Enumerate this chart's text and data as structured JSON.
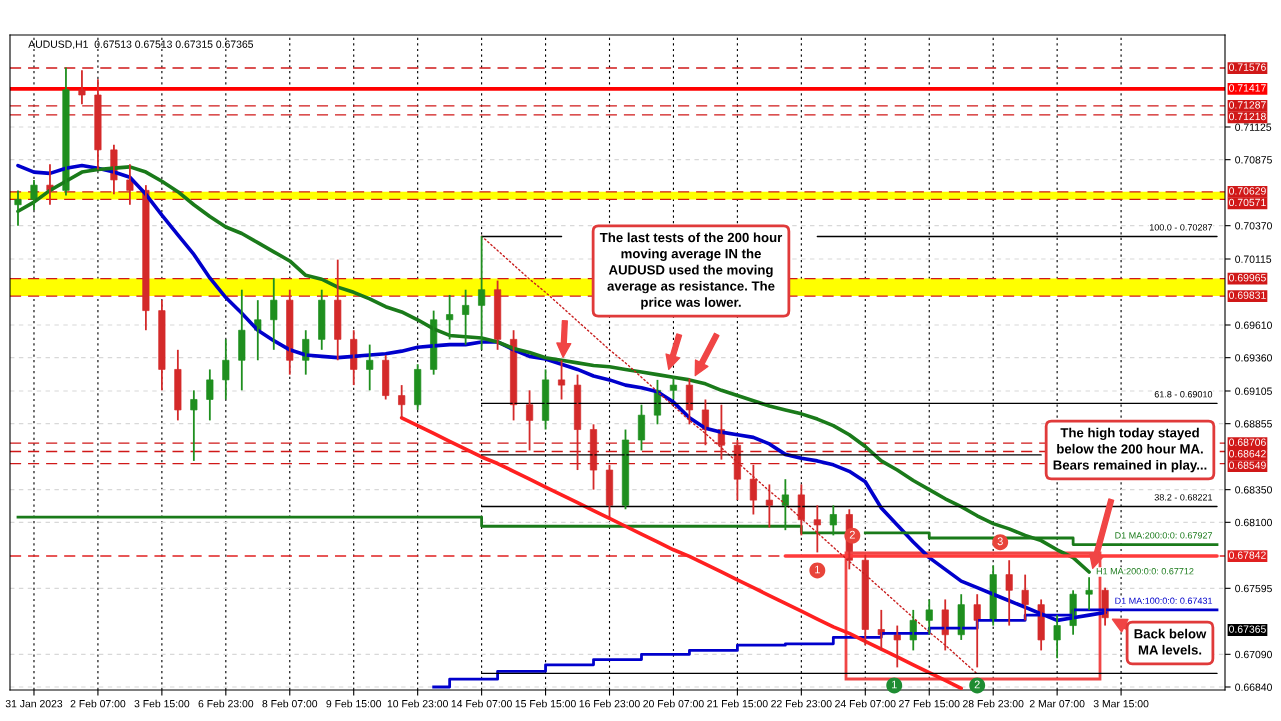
{
  "chart_data": {
    "type": "candlestick",
    "title": "AUDUSD,H1  0.67513 0.67513 0.67315 0.67365",
    "categories": [
      null,
      "31 Jan 2023",
      null,
      null,
      null,
      "2 Feb 07:00",
      null,
      null,
      null,
      "3 Feb 15:00",
      null,
      null,
      null,
      "6 Feb 23:00",
      null,
      null,
      null,
      "8 Feb 07:00",
      null,
      null,
      null,
      "9 Feb 15:00",
      null,
      null,
      null,
      "10 Feb 23:00",
      null,
      null,
      null,
      "14 Feb 07:00",
      null,
      null,
      null,
      "15 Feb 15:00",
      null,
      null,
      null,
      "16 Feb 23:00",
      null,
      null,
      null,
      "20 Feb 07:00",
      null,
      null,
      null,
      "21 Feb 15:00",
      null,
      null,
      null,
      "22 Feb 23:00",
      null,
      null,
      null,
      "24 Feb 07:00",
      null,
      null,
      null,
      "27 Feb 15:00",
      null,
      null,
      null,
      "28 Feb 23:00",
      null,
      null,
      null,
      "2 Mar 07:00",
      null,
      null,
      null,
      "3 Mar 15:00",
      null,
      null,
      null,
      null,
      null,
      null
    ],
    "ohlc": [
      [
        0.7053,
        0.7064,
        0.7037,
        0.7057
      ],
      [
        0.7057,
        0.7072,
        0.7049,
        0.7068
      ],
      [
        0.7068,
        0.7084,
        0.7053,
        0.7064
      ],
      [
        0.7064,
        0.7158,
        0.706,
        0.7141
      ],
      [
        0.7141,
        0.7156,
        0.713,
        0.7137
      ],
      [
        0.7137,
        0.7149,
        0.708,
        0.7095
      ],
      [
        0.7095,
        0.7099,
        0.7061,
        0.7072
      ],
      [
        0.7072,
        0.7084,
        0.7053,
        0.7064
      ],
      [
        0.7064,
        0.7068,
        0.6957,
        0.6972
      ],
      [
        0.6972,
        0.698,
        0.6911,
        0.6927
      ],
      [
        0.6927,
        0.6942,
        0.6888,
        0.6896
      ],
      [
        0.6896,
        0.6911,
        0.6857,
        0.6904
      ],
      [
        0.6904,
        0.6927,
        0.6888,
        0.6919
      ],
      [
        0.6919,
        0.695,
        0.6904,
        0.6934
      ],
      [
        0.6934,
        0.6988,
        0.6911,
        0.6957
      ],
      [
        0.6957,
        0.698,
        0.6934,
        0.6965
      ],
      [
        0.6965,
        0.6997,
        0.6942,
        0.698
      ],
      [
        0.698,
        0.6988,
        0.6923,
        0.6934
      ],
      [
        0.6934,
        0.6957,
        0.6923,
        0.695
      ],
      [
        0.695,
        0.6988,
        0.6942,
        0.698
      ],
      [
        0.698,
        0.7011,
        0.6934,
        0.695
      ],
      [
        0.695,
        0.6957,
        0.6915,
        0.6927
      ],
      [
        0.6927,
        0.6946,
        0.6911,
        0.6934
      ],
      [
        0.6934,
        0.6938,
        0.6904,
        0.6907
      ],
      [
        0.6907,
        0.6915,
        0.689,
        0.69
      ],
      [
        0.69,
        0.6931,
        0.6896,
        0.6927
      ],
      [
        0.6927,
        0.6972,
        0.6923,
        0.6965
      ],
      [
        0.6965,
        0.6984,
        0.695,
        0.6969
      ],
      [
        0.6969,
        0.6988,
        0.6946,
        0.6976
      ],
      [
        0.6976,
        0.7029,
        0.6942,
        0.6988
      ],
      [
        0.6988,
        0.6995,
        0.6942,
        0.695
      ],
      [
        0.695,
        0.6957,
        0.6888,
        0.69
      ],
      [
        0.69,
        0.6911,
        0.6865,
        0.6888
      ],
      [
        0.6888,
        0.6927,
        0.6881,
        0.6919
      ],
      [
        0.6919,
        0.6934,
        0.6904,
        0.6915
      ],
      [
        0.6915,
        0.6923,
        0.685,
        0.6881
      ],
      [
        0.6881,
        0.6885,
        0.6835,
        0.685
      ],
      [
        0.685,
        0.6854,
        0.6814,
        0.6823
      ],
      [
        0.6823,
        0.6881,
        0.682,
        0.6873
      ],
      [
        0.6873,
        0.69,
        0.6865,
        0.6892
      ],
      [
        0.6892,
        0.6919,
        0.6885,
        0.6911
      ],
      [
        0.6911,
        0.6921,
        0.6904,
        0.6915
      ],
      [
        0.6915,
        0.692,
        0.6885,
        0.6896
      ],
      [
        0.6896,
        0.6904,
        0.6869,
        0.6881
      ],
      [
        0.6881,
        0.69,
        0.6858,
        0.6869
      ],
      [
        0.6869,
        0.6873,
        0.6827,
        0.6843
      ],
      [
        0.6843,
        0.6854,
        0.6816,
        0.6827
      ],
      [
        0.6827,
        0.6839,
        0.6806,
        0.6823
      ],
      [
        0.6823,
        0.6843,
        0.6804,
        0.6831
      ],
      [
        0.6831,
        0.6839,
        0.68,
        0.6812
      ],
      [
        0.6812,
        0.6823,
        0.6787,
        0.6808
      ],
      [
        0.6808,
        0.6823,
        0.68,
        0.6816
      ],
      [
        0.6816,
        0.682,
        0.6774,
        0.6781
      ],
      [
        0.6781,
        0.6785,
        0.6716,
        0.6728
      ],
      [
        0.6728,
        0.6743,
        0.6712,
        0.6724
      ],
      [
        0.6724,
        0.6731,
        0.6699,
        0.672
      ],
      [
        0.672,
        0.6743,
        0.6712,
        0.6735
      ],
      [
        0.6735,
        0.6751,
        0.6724,
        0.6743
      ],
      [
        0.6743,
        0.6751,
        0.6712,
        0.6724
      ],
      [
        0.6724,
        0.6755,
        0.672,
        0.6747
      ],
      [
        0.6747,
        0.6755,
        0.6699,
        0.6735
      ],
      [
        0.6735,
        0.6777,
        0.6731,
        0.677
      ],
      [
        0.677,
        0.6781,
        0.6731,
        0.6758
      ],
      [
        0.6758,
        0.677,
        0.6735,
        0.6747
      ],
      [
        0.6747,
        0.6751,
        0.6712,
        0.672
      ],
      [
        0.672,
        0.6739,
        0.6706,
        0.6731
      ],
      [
        0.6731,
        0.6758,
        0.6724,
        0.6755
      ],
      [
        0.6755,
        0.6768,
        0.6743,
        0.6758
      ],
      [
        0.6758,
        0.676,
        0.6731,
        0.6737
      ],
      null,
      null,
      null,
      null,
      null,
      null,
      null
    ],
    "series": [
      {
        "type": "line",
        "color": "#0000cc",
        "values": [
          0.7083,
          0.7078,
          0.7077,
          0.7081,
          0.7083,
          0.7081,
          0.7078,
          0.7074,
          0.7061,
          0.7045,
          0.703,
          0.7015,
          0.6997,
          0.6982,
          0.697,
          0.6957,
          0.6949,
          0.6942,
          0.6938,
          0.6937,
          0.6936,
          0.6937,
          0.6938,
          0.6939,
          0.6941,
          0.6944,
          0.6945,
          0.6946,
          0.6946,
          0.6948,
          0.6948,
          0.6942,
          0.6937,
          0.6935,
          0.6931,
          0.6927,
          0.6922,
          0.6919,
          0.6915,
          0.6913,
          0.691,
          0.6902,
          0.689,
          0.6882,
          0.6879,
          0.6877,
          0.6875,
          0.687,
          0.6862,
          0.6859,
          0.6857,
          0.6854,
          0.6849,
          0.6841,
          0.6821,
          0.6808,
          0.6795,
          0.6783,
          0.6774,
          0.6765,
          0.676,
          0.6755,
          0.675,
          0.6745,
          0.674,
          0.6735,
          0.6737,
          0.6739,
          0.6741,
          null,
          null,
          null,
          null,
          null,
          null,
          null
        ]
      },
      {
        "type": "line",
        "name": "H1 MA:200:0:0: 0.67712",
        "color": "#1a7a1a",
        "values": [
          0.7048,
          0.7055,
          0.7064,
          0.7071,
          0.7078,
          0.708,
          0.7081,
          0.7082,
          0.7078,
          0.7071,
          0.7063,
          0.7053,
          0.7044,
          0.7036,
          0.7031,
          0.7024,
          0.7017,
          0.701,
          0.6999,
          0.6996,
          0.699,
          0.6986,
          0.6981,
          0.6975,
          0.6971,
          0.6965,
          0.6958,
          0.6953,
          0.6952,
          0.6951,
          0.6948,
          0.6943,
          0.694,
          0.6936,
          0.6934,
          0.6932,
          0.693,
          0.6929,
          0.6927,
          0.6925,
          0.6923,
          0.6921,
          0.6919,
          0.6916,
          0.6911,
          0.6907,
          0.6903,
          0.6899,
          0.6896,
          0.6893,
          0.6889,
          0.6884,
          0.6877,
          0.6868,
          0.6857,
          0.685,
          0.6842,
          0.6835,
          0.6828,
          0.6822,
          0.6815,
          0.6809,
          0.6805,
          0.68,
          0.6796,
          0.6789,
          0.6783,
          0.6772,
          null,
          null,
          null,
          null,
          null,
          null,
          null,
          null
        ]
      },
      {
        "type": "step",
        "name": "D1 MA:200:0:0: 0.67927",
        "color": "#1a7a1a",
        "values": [
          0.6814,
          0.6814,
          0.6814,
          0.6814,
          0.6814,
          0.6814,
          0.6814,
          0.6814,
          0.6814,
          0.6814,
          0.6814,
          0.6814,
          0.6814,
          0.6814,
          0.6814,
          0.6814,
          0.6814,
          0.6814,
          0.6814,
          0.6814,
          0.6814,
          0.6814,
          0.6814,
          0.6814,
          0.6814,
          0.6814,
          0.6814,
          0.6814,
          0.6814,
          0.6807,
          0.6807,
          0.6807,
          0.6807,
          0.6807,
          0.6807,
          0.6807,
          0.6807,
          0.6807,
          0.6807,
          0.6807,
          0.6807,
          0.6807,
          0.6807,
          0.6807,
          0.6807,
          0.6807,
          0.6807,
          0.6807,
          0.6807,
          0.6802,
          0.6802,
          0.6802,
          null,
          0.6802,
          0.6802,
          0.6802,
          0.6802,
          0.6798,
          0.6798,
          0.6798,
          0.6798,
          0.6798,
          0.6798,
          0.6798,
          0.6798,
          0.6798,
          0.6793,
          0.6793,
          0.6793,
          0.6793,
          0.6793,
          0.6793,
          0.6793,
          0.6793,
          0.6793,
          0.6793
        ]
      },
      {
        "type": "step",
        "name": "D1 MA:100:0:0: 0.67431",
        "color": "#0000cc",
        "values": [
          null,
          null,
          null,
          null,
          null,
          null,
          null,
          null,
          null,
          null,
          null,
          null,
          null,
          null,
          null,
          null,
          null,
          null,
          null,
          null,
          null,
          null,
          null,
          null,
          null,
          null,
          0.6684,
          0.669,
          0.669,
          0.669,
          0.6696,
          0.6696,
          0.6696,
          0.6701,
          0.6701,
          0.6701,
          0.6705,
          0.6705,
          0.6705,
          0.6709,
          0.6709,
          0.6709,
          0.6712,
          0.6712,
          0.6712,
          0.6716,
          0.6716,
          0.6716,
          0.6717,
          0.6717,
          0.6717,
          0.6722,
          0.6722,
          0.6722,
          0.6725,
          0.6725,
          0.6725,
          0.6729,
          0.6729,
          0.6729,
          0.6735,
          0.6735,
          0.6735,
          0.6739,
          0.6739,
          0.6739,
          0.6743,
          0.6743,
          0.6743,
          0.6743,
          0.6743,
          0.6743,
          0.6743,
          0.6743,
          0.6743,
          0.6743
        ]
      },
      {
        "type": "line",
        "color": "#ff2020",
        "values": [
          null,
          null,
          null,
          null,
          null,
          null,
          null,
          null,
          null,
          null,
          null,
          null,
          null,
          null,
          null,
          null,
          null,
          null,
          null,
          null,
          null,
          null,
          null,
          null,
          0.689,
          0.6884,
          0.6878,
          0.6872,
          0.6866,
          0.686,
          0.6855,
          0.6849,
          0.6843,
          0.6837,
          0.6831,
          0.6825,
          0.6819,
          0.6813,
          0.6807,
          0.6801,
          0.6795,
          0.6789,
          0.6784,
          0.6778,
          0.6772,
          0.6766,
          0.676,
          0.6754,
          0.6748,
          0.6742,
          0.6736,
          0.673,
          0.6725,
          0.6719,
          0.6713,
          0.6707,
          0.6701,
          0.6695,
          0.6689,
          0.6683,
          null,
          null,
          null,
          null,
          null,
          null,
          null,
          null,
          null,
          null,
          null,
          null,
          null,
          null,
          null,
          null
        ]
      },
      {
        "type": "line",
        "color": "#ff3b3b",
        "values": [
          null,
          null,
          null,
          null,
          null,
          null,
          null,
          null,
          null,
          null,
          null,
          null,
          null,
          null,
          null,
          null,
          null,
          null,
          null,
          null,
          null,
          null,
          null,
          null,
          null,
          null,
          null,
          null,
          null,
          null,
          null,
          null,
          null,
          null,
          null,
          null,
          null,
          null,
          null,
          null,
          null,
          null,
          null,
          null,
          null,
          null,
          null,
          null,
          0.67842,
          0.67842,
          0.67842,
          0.67842,
          0.67842,
          0.67842,
          0.67842,
          0.67842,
          0.67842,
          0.67842,
          0.67842,
          0.67842,
          0.67842,
          0.67842,
          0.67842,
          0.67842,
          0.67842,
          0.67842,
          0.67842,
          0.67842,
          0.67842,
          0.67842,
          0.67842,
          0.67842,
          0.67842,
          0.67842,
          0.67842,
          0.67842
        ]
      },
      {
        "type": "line",
        "color": "#c81e1e",
        "line_style": "dotted",
        "values": [
          null,
          null,
          null,
          null,
          null,
          null,
          null,
          null,
          null,
          null,
          null,
          null,
          null,
          null,
          null,
          null,
          null,
          null,
          null,
          null,
          null,
          null,
          null,
          null,
          null,
          null,
          null,
          null,
          null,
          0.7029,
          0.7018,
          0.7007,
          0.6996,
          0.6986,
          0.6975,
          0.6964,
          0.6953,
          0.6942,
          0.6932,
          0.6921,
          0.691,
          0.6899,
          0.6888,
          0.6878,
          0.6867,
          0.6856,
          0.6845,
          0.6834,
          0.6824,
          0.6813,
          0.6802,
          0.6791,
          0.678,
          0.677,
          0.6759,
          0.6748,
          0.6737,
          0.6726,
          0.6716,
          0.6705,
          0.6694,
          null,
          null,
          null,
          null,
          null,
          null,
          null,
          null,
          null,
          null,
          null,
          null,
          null,
          null,
          null
        ]
      },
      {
        "type": "line",
        "name": "100.0 - 0.70287",
        "color": "#000000",
        "values": [
          null,
          null,
          null,
          null,
          null,
          null,
          null,
          null,
          null,
          null,
          null,
          null,
          null,
          null,
          null,
          null,
          null,
          null,
          null,
          null,
          null,
          null,
          null,
          null,
          null,
          null,
          null,
          null,
          null,
          0.70287,
          0.70287,
          0.70287,
          0.70287,
          0.70287,
          0.70287,
          null,
          null,
          null,
          null,
          null,
          null,
          null,
          null,
          null,
          null,
          null,
          null,
          null,
          null,
          null,
          0.70287,
          0.70287,
          0.70287,
          0.70287,
          0.70287,
          0.70287,
          0.70287,
          0.70287,
          0.70287,
          0.70287,
          0.70287,
          0.70287,
          0.70287,
          0.70287,
          0.70287,
          0.70287,
          0.70287,
          0.70287,
          0.70287,
          0.70287,
          0.70287,
          0.70287,
          0.70287,
          0.70287,
          0.70287,
          0.70287
        ]
      },
      {
        "type": "line",
        "name": "61.8 - 0.69010",
        "color": "#000000",
        "values": [
          null,
          null,
          null,
          null,
          null,
          null,
          null,
          null,
          null,
          null,
          null,
          null,
          null,
          null,
          null,
          null,
          null,
          null,
          null,
          null,
          null,
          null,
          null,
          null,
          null,
          null,
          null,
          null,
          null,
          0.6901,
          0.6901,
          0.6901,
          0.6901,
          0.6901,
          0.6901,
          0.6901,
          0.6901,
          0.6901,
          0.6901,
          0.6901,
          0.6901,
          0.6901,
          0.6901,
          0.6901,
          0.6901,
          0.6901,
          0.6901,
          0.6901,
          0.6901,
          0.6901,
          0.6901,
          0.6901,
          0.6901,
          0.6901,
          0.6901,
          0.6901,
          0.6901,
          0.6901,
          0.6901,
          0.6901,
          0.6901,
          0.6901,
          0.6901,
          0.6901,
          0.6901,
          0.6901,
          0.6901,
          0.6901,
          0.6901,
          0.6901,
          0.6901,
          0.6901,
          0.6901,
          0.6901,
          0.6901,
          0.6901
        ]
      },
      {
        "type": "line",
        "color": "#000000",
        "values": [
          null,
          null,
          null,
          null,
          null,
          null,
          null,
          null,
          null,
          null,
          null,
          null,
          null,
          null,
          null,
          null,
          null,
          null,
          null,
          null,
          null,
          null,
          null,
          null,
          null,
          null,
          null,
          null,
          null,
          0.68616,
          0.68616,
          0.68616,
          0.68616,
          0.68616,
          0.68616,
          0.68616,
          0.68616,
          0.68616,
          0.68616,
          0.68616,
          0.68616,
          0.68616,
          0.68616,
          0.68616,
          0.68616,
          0.68616,
          0.68616,
          0.68616,
          0.68616,
          0.68616,
          0.68616,
          0.68616,
          0.68616,
          0.68616,
          0.68616,
          0.68616,
          0.68616,
          0.68616,
          0.68616,
          0.68616,
          0.68616,
          0.68616,
          0.68616,
          0.68616,
          0.68616,
          null,
          null,
          null,
          null,
          null,
          null,
          null,
          null,
          null,
          null,
          null
        ]
      },
      {
        "type": "line",
        "name": "38.2 - 0.68221",
        "color": "#000000",
        "values": [
          null,
          null,
          null,
          null,
          null,
          null,
          null,
          null,
          null,
          null,
          null,
          null,
          null,
          null,
          null,
          null,
          null,
          null,
          null,
          null,
          null,
          null,
          null,
          null,
          null,
          null,
          null,
          null,
          null,
          0.68221,
          0.68221,
          0.68221,
          0.68221,
          0.68221,
          0.68221,
          0.68221,
          0.68221,
          0.68221,
          0.68221,
          0.68221,
          0.68221,
          0.68221,
          0.68221,
          0.68221,
          0.68221,
          0.68221,
          0.68221,
          0.68221,
          0.68221,
          0.68221,
          0.68221,
          0.68221,
          0.68221,
          0.68221,
          0.68221,
          0.68221,
          0.68221,
          0.68221,
          0.68221,
          0.68221,
          0.68221,
          0.68221,
          0.68221,
          0.68221,
          0.68221,
          0.68221,
          0.68221,
          0.68221,
          0.68221,
          0.68221,
          0.68221,
          0.68221,
          0.68221,
          0.68221,
          0.68221,
          0.68221
        ]
      },
      {
        "type": "line",
        "color": "#000000",
        "values": [
          null,
          null,
          null,
          null,
          null,
          null,
          null,
          null,
          null,
          null,
          null,
          null,
          null,
          null,
          null,
          null,
          null,
          null,
          null,
          null,
          null,
          null,
          null,
          null,
          null,
          null,
          null,
          null,
          null,
          0.66944,
          0.66944,
          0.66944,
          0.66944,
          0.66944,
          0.66944,
          0.66944,
          0.66944,
          0.66944,
          0.66944,
          0.66944,
          0.66944,
          0.66944,
          0.66944,
          0.66944,
          0.66944,
          0.66944,
          0.66944,
          0.66944,
          0.66944,
          0.66944,
          0.66944,
          0.66944,
          0.66944,
          0.66944,
          0.66944,
          0.66944,
          0.66944,
          0.66944,
          0.66944,
          0.66944,
          0.66944,
          0.66944,
          0.66944,
          0.66944,
          0.66944,
          0.66944,
          0.66944,
          0.66944,
          0.66944,
          0.66944,
          0.66944,
          0.66944,
          0.66944,
          0.66944,
          0.66944,
          0.66944
        ]
      }
    ],
    "ylim": [
      0.66817,
      0.71829
    ],
    "yticks": [
      0.71125,
      0.70875,
      {
        "value": 0.7037,
        "label": "0.70370"
      },
      0.70115,
      {
        "value": 0.6961,
        "label": "0.69610"
      },
      {
        "value": 0.6936,
        "label": "0.69360"
      },
      0.69105,
      0.68855,
      {
        "value": 0.6835,
        "label": "0.68350"
      },
      {
        "value": 0.681,
        "label": "0.68100"
      },
      0.67595,
      {
        "value": 0.6709,
        "label": "0.67090"
      },
      {
        "value": 0.6684,
        "label": "0.66840"
      }
    ],
    "grid": true,
    "bands": [
      {
        "axis": "y",
        "from": 0.70571,
        "to": 0.70629,
        "color": "#ffff00"
      },
      {
        "axis": "y",
        "from": 0.69831,
        "to": 0.69965,
        "color": "#ffff00"
      }
    ],
    "ref_lines": [
      {
        "axis": "y",
        "value": 0.71576,
        "label": "0.71576",
        "color": "#d01818",
        "line_style": "dashed"
      },
      {
        "axis": "y",
        "value": 0.71417,
        "label": "0.71417",
        "color": "#ff0000",
        "line_style": "solid"
      },
      {
        "axis": "y",
        "value": 0.71287,
        "label": "0.71287",
        "color": "#d01818",
        "line_style": "dashed"
      },
      {
        "axis": "y",
        "value": 0.71218,
        "label": "0.71218",
        "color": "#d01818",
        "line_style": "dashed"
      },
      {
        "axis": "y",
        "value": 0.70629,
        "label": "0.70629",
        "color": "#d01818",
        "line_style": "dashed"
      },
      {
        "axis": "y",
        "value": 0.70571,
        "label": "0.70571",
        "color": "#d01818",
        "line_style": "dashed"
      },
      {
        "axis": "y",
        "value": 0.69965,
        "label": "0.69965",
        "color": "#d01818",
        "line_style": "dashed"
      },
      {
        "axis": "y",
        "value": 0.69831,
        "label": "0.69831",
        "color": "#d01818",
        "line_style": "dashed"
      },
      {
        "axis": "y",
        "value": 0.68706,
        "label": "0.68706",
        "color": "#d01818",
        "line_style": "dashed"
      },
      {
        "axis": "y",
        "value": 0.68642,
        "label": "0.68642",
        "color": "#d01818",
        "line_style": "dashed"
      },
      {
        "axis": "y",
        "value": 0.68549,
        "label": "0.68549",
        "color": "#d01818",
        "line_style": "dashed"
      },
      {
        "axis": "y",
        "value": 0.67842,
        "label": "0.67842",
        "color": "#e02020",
        "line_style": "dashed"
      }
    ],
    "annotations": [
      "The last tests of the 200 hour\nmoving average IN the\nAUDUSD used the moving\naverage as resistance. The\nprice was lower.",
      "The high today stayed\nbelow the 200 hour MA.\nBears remained in play...",
      "Back below\nMA levels.",
      "0.67365",
      {
        "text": "1",
        "y": 0.6787
      },
      {
        "text": "2",
        "y": 0.6786
      },
      {
        "text": "3",
        "y": 0.6781
      },
      {
        "text": "1",
        "y": 0.6699
      },
      {
        "text": "2",
        "y": 0.6699
      }
    ]
  }
}
